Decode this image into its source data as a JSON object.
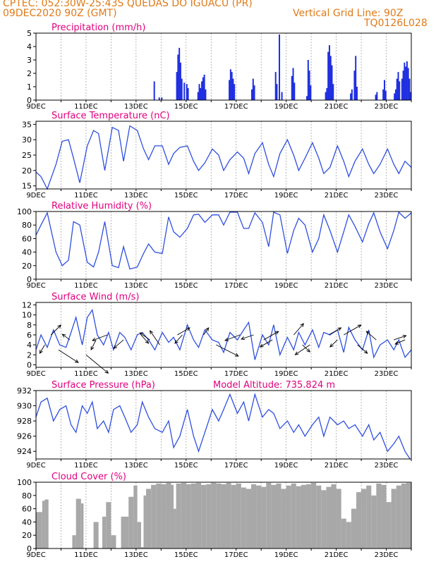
{
  "header": {
    "line1": "CPTEC:   052:30W-25:43S   QUEDAS DO IGUACU (PR)",
    "line2_left": "09DEC2020 90Z (GMT)",
    "line2_right": "Vertical Grid Line: 90Z",
    "line3_right": "TQ0126L028"
  },
  "colors": {
    "title": "#e0007e",
    "header": "#e07a18",
    "line": "#2f4fe0",
    "bar": "#1f2fe0",
    "cloud": "#a8a8a8"
  },
  "chart_data": [
    {
      "type": "bar",
      "title": "Precipitation  (mm/h)",
      "x_labels": [
        "9DEC",
        "11DEC",
        "13DEC",
        "15DEC",
        "17DEC",
        "19DEC",
        "21DEC",
        "23DEC"
      ],
      "ylim": [
        0,
        5
      ],
      "yticks": [
        0,
        1,
        2,
        3,
        4,
        5
      ],
      "events": [
        {
          "day": 13.7,
          "v": 1.4
        },
        {
          "day": 13.9,
          "v": 0.2
        },
        {
          "day": 14.0,
          "v": 0.2
        },
        {
          "day": 14.6,
          "v": 2.1
        },
        {
          "day": 14.65,
          "v": 3.4
        },
        {
          "day": 14.7,
          "v": 3.9
        },
        {
          "day": 14.75,
          "v": 2.8
        },
        {
          "day": 14.8,
          "v": 1.6
        },
        {
          "day": 14.9,
          "v": 1.3
        },
        {
          "day": 15.0,
          "v": 1.2
        },
        {
          "day": 15.05,
          "v": 0.9
        },
        {
          "day": 15.45,
          "v": 0.6
        },
        {
          "day": 15.5,
          "v": 1.2
        },
        {
          "day": 15.55,
          "v": 0.9
        },
        {
          "day": 15.6,
          "v": 1.4
        },
        {
          "day": 15.65,
          "v": 1.7
        },
        {
          "day": 15.7,
          "v": 1.9
        },
        {
          "day": 15.75,
          "v": 0.8
        },
        {
          "day": 16.7,
          "v": 1.5
        },
        {
          "day": 16.75,
          "v": 2.3
        },
        {
          "day": 16.8,
          "v": 2.1
        },
        {
          "day": 16.85,
          "v": 1.6
        },
        {
          "day": 16.9,
          "v": 1.2
        },
        {
          "day": 17.6,
          "v": 0.8
        },
        {
          "day": 17.65,
          "v": 1.6
        },
        {
          "day": 17.7,
          "v": 1.1
        },
        {
          "day": 18.55,
          "v": 2.1
        },
        {
          "day": 18.6,
          "v": 1.2
        },
        {
          "day": 18.7,
          "v": 4.9
        },
        {
          "day": 18.8,
          "v": 0.6
        },
        {
          "day": 19.2,
          "v": 1.8
        },
        {
          "day": 19.25,
          "v": 2.4
        },
        {
          "day": 19.3,
          "v": 1.3
        },
        {
          "day": 19.8,
          "v": 0.3
        },
        {
          "day": 19.85,
          "v": 3.0
        },
        {
          "day": 19.9,
          "v": 2.2
        },
        {
          "day": 19.95,
          "v": 1.1
        },
        {
          "day": 20.55,
          "v": 0.6
        },
        {
          "day": 20.6,
          "v": 0.9
        },
        {
          "day": 20.65,
          "v": 3.6
        },
        {
          "day": 20.7,
          "v": 4.1
        },
        {
          "day": 20.75,
          "v": 3.3
        },
        {
          "day": 20.8,
          "v": 2.6
        },
        {
          "day": 20.85,
          "v": 1.2
        },
        {
          "day": 21.55,
          "v": 0.5
        },
        {
          "day": 21.6,
          "v": 0.8
        },
        {
          "day": 21.7,
          "v": 2.2
        },
        {
          "day": 21.75,
          "v": 3.3
        },
        {
          "day": 21.8,
          "v": 1.0
        },
        {
          "day": 22.55,
          "v": 0.4
        },
        {
          "day": 22.6,
          "v": 0.6
        },
        {
          "day": 22.85,
          "v": 0.8
        },
        {
          "day": 22.9,
          "v": 1.5
        },
        {
          "day": 22.95,
          "v": 0.7
        },
        {
          "day": 23.3,
          "v": 0.5
        },
        {
          "day": 23.35,
          "v": 0.8
        },
        {
          "day": 23.4,
          "v": 1.6
        },
        {
          "day": 23.45,
          "v": 2.1
        },
        {
          "day": 23.5,
          "v": 1.4
        },
        {
          "day": 23.6,
          "v": 1.6
        },
        {
          "day": 23.65,
          "v": 2.2
        },
        {
          "day": 23.7,
          "v": 2.8
        },
        {
          "day": 23.75,
          "v": 2.5
        },
        {
          "day": 23.8,
          "v": 2.9
        },
        {
          "day": 23.85,
          "v": 2.4
        },
        {
          "day": 23.9,
          "v": 1.6
        },
        {
          "day": 23.95,
          "v": 0.6
        }
      ]
    },
    {
      "type": "line",
      "title": "Surface Temperature (nC)",
      "x_labels": [
        "9DEC",
        "11DEC",
        "13DEC",
        "15DEC",
        "17DEC",
        "19DEC",
        "21DEC",
        "23DEC"
      ],
      "ylim": [
        14,
        36
      ],
      "yticks": [
        15,
        20,
        25,
        30,
        35
      ],
      "x": [
        9.0,
        9.2,
        9.45,
        9.8,
        10.05,
        10.3,
        10.5,
        10.75,
        11.05,
        11.3,
        11.5,
        11.75,
        12.05,
        12.3,
        12.5,
        12.75,
        13.05,
        13.3,
        13.5,
        13.75,
        14.05,
        14.3,
        14.5,
        14.75,
        15.05,
        15.3,
        15.5,
        15.75,
        16.05,
        16.3,
        16.5,
        16.75,
        17.05,
        17.3,
        17.5,
        17.75,
        18.05,
        18.3,
        18.5,
        18.75,
        19.05,
        19.3,
        19.5,
        19.75,
        20.05,
        20.3,
        20.5,
        20.75,
        21.05,
        21.3,
        21.5,
        21.75,
        22.05,
        22.3,
        22.5,
        22.75,
        23.05,
        23.3,
        23.5,
        23.75,
        24.0
      ],
      "y": [
        19.5,
        18,
        14,
        22,
        29.5,
        30,
        24,
        16,
        28,
        33,
        32,
        20,
        34,
        33,
        23,
        34.5,
        33,
        27,
        23.5,
        28,
        28,
        22,
        25.5,
        27.5,
        28,
        23,
        20,
        22.5,
        27,
        25,
        20,
        23.5,
        26,
        24,
        19,
        25.5,
        29,
        22,
        18,
        25.5,
        30,
        25,
        20,
        24,
        29,
        24,
        19,
        21,
        28,
        23,
        18,
        23,
        27,
        22,
        19,
        22,
        27,
        22,
        19,
        23,
        21
      ]
    },
    {
      "type": "line",
      "title": "Relative Humidity (%)",
      "x_labels": [
        "9DEC",
        "11DEC",
        "13DEC",
        "15DEC",
        "17DEC",
        "19DEC",
        "21DEC",
        "23DEC"
      ],
      "ylim": [
        0,
        100
      ],
      "yticks": [
        0,
        20,
        40,
        60,
        80,
        100
      ],
      "x": [
        9.0,
        9.2,
        9.45,
        9.8,
        10.05,
        10.3,
        10.5,
        10.75,
        11.05,
        11.3,
        11.5,
        11.75,
        12.05,
        12.3,
        12.5,
        12.75,
        13.05,
        13.3,
        13.5,
        13.75,
        14.05,
        14.3,
        14.5,
        14.75,
        15.05,
        15.3,
        15.5,
        15.75,
        16.05,
        16.3,
        16.5,
        16.75,
        17.05,
        17.3,
        17.5,
        17.75,
        18.05,
        18.3,
        18.5,
        18.75,
        19.05,
        19.3,
        19.5,
        19.75,
        20.05,
        20.3,
        20.5,
        20.75,
        21.05,
        21.3,
        21.5,
        21.75,
        22.05,
        22.3,
        22.5,
        22.75,
        23.05,
        23.3,
        23.5,
        23.75,
        24.0
      ],
      "y": [
        65,
        80,
        98,
        40,
        20,
        28,
        85,
        80,
        25,
        18,
        40,
        85,
        20,
        17,
        48,
        15,
        18,
        38,
        52,
        40,
        38,
        92,
        70,
        62,
        75,
        95,
        96,
        84,
        95,
        95,
        80,
        99,
        99,
        75,
        75,
        98,
        84,
        48,
        99,
        95,
        38,
        72,
        90,
        80,
        40,
        60,
        95,
        72,
        40,
        70,
        95,
        78,
        55,
        82,
        98,
        70,
        45,
        72,
        99,
        90,
        98
      ]
    },
    {
      "type": "line",
      "title": "Surface Wind  (m/s)",
      "x_labels": [
        "9DEC",
        "11DEC",
        "13DEC",
        "15DEC",
        "17DEC",
        "19DEC",
        "21DEC",
        "23DEC"
      ],
      "ylim": [
        -0.5,
        12.5
      ],
      "yticks": [
        0,
        2,
        4,
        6,
        8,
        10,
        12
      ],
      "x": [
        9.0,
        9.2,
        9.45,
        9.7,
        9.95,
        10.2,
        10.4,
        10.6,
        10.85,
        11.05,
        11.25,
        11.45,
        11.7,
        11.9,
        12.1,
        12.35,
        12.55,
        12.8,
        13.05,
        13.25,
        13.5,
        13.75,
        14.05,
        14.3,
        14.5,
        14.75,
        15.05,
        15.3,
        15.5,
        15.75,
        16.05,
        16.3,
        16.5,
        16.75,
        17.05,
        17.3,
        17.5,
        17.75,
        18.05,
        18.3,
        18.5,
        18.75,
        19.05,
        19.3,
        19.5,
        19.75,
        20.05,
        20.3,
        20.5,
        20.75,
        21.05,
        21.3,
        21.5,
        21.75,
        22.05,
        22.3,
        22.5,
        22.75,
        23.05,
        23.3,
        23.5,
        23.75,
        24.0
      ],
      "y": [
        3,
        6,
        3.5,
        7,
        4,
        3.5,
        6.5,
        9.5,
        4,
        9.5,
        11,
        6,
        4,
        6.5,
        3,
        6.5,
        5.5,
        3,
        6,
        6.5,
        5,
        3,
        6.5,
        4.5,
        5.5,
        3,
        8,
        5,
        3.5,
        7,
        5,
        4.5,
        2.5,
        6.5,
        5,
        7,
        8.5,
        1,
        6,
        4,
        8,
        2,
        5.5,
        3,
        6.5,
        4,
        7,
        3.5,
        6.5,
        6,
        7,
        2.5,
        7.5,
        5,
        3,
        7,
        1.5,
        4,
        5,
        3,
        5,
        1.5,
        3
      ]
    },
    {
      "type": "line",
      "title": "Surface Pressure (hPa)",
      "annotation": "Model Altitude: 735.824  m",
      "x_labels": [
        "9DEC",
        "11DEC",
        "13DEC",
        "15DEC",
        "17DEC",
        "19DEC",
        "21DEC",
        "23DEC"
      ],
      "ylim": [
        923,
        932
      ],
      "yticks": [
        924,
        926,
        928,
        930,
        932
      ],
      "x": [
        9.0,
        9.2,
        9.45,
        9.7,
        9.95,
        10.2,
        10.4,
        10.6,
        10.85,
        11.05,
        11.25,
        11.45,
        11.7,
        11.9,
        12.1,
        12.35,
        12.55,
        12.8,
        13.05,
        13.25,
        13.5,
        13.75,
        14.05,
        14.3,
        14.5,
        14.75,
        15.05,
        15.3,
        15.5,
        15.75,
        16.05,
        16.3,
        16.5,
        16.75,
        17.05,
        17.3,
        17.5,
        17.75,
        18.05,
        18.3,
        18.5,
        18.75,
        19.05,
        19.3,
        19.5,
        19.75,
        20.05,
        20.3,
        20.5,
        20.75,
        21.05,
        21.3,
        21.5,
        21.75,
        22.05,
        22.3,
        22.5,
        22.75,
        23.05,
        23.3,
        23.5,
        23.75,
        23.95
      ],
      "y": [
        928.5,
        930.5,
        931,
        928,
        929.5,
        930,
        927.5,
        926.5,
        930,
        929,
        930.5,
        927,
        928,
        926.5,
        929.5,
        930,
        928.5,
        926.5,
        927.5,
        930.5,
        928.5,
        927,
        926.5,
        928,
        924.5,
        926,
        929.5,
        926,
        924,
        926.5,
        929.5,
        928,
        929.5,
        931.5,
        929,
        930.5,
        928,
        931.5,
        928.5,
        929.5,
        929,
        927,
        928,
        926.5,
        927.5,
        926,
        927.5,
        928.5,
        926,
        928.5,
        927.5,
        928,
        927,
        927.5,
        926,
        927.5,
        925.5,
        926.5,
        924,
        925,
        926,
        924,
        923
      ]
    },
    {
      "type": "bar",
      "title": "Cloud Cover (%)",
      "x_labels": [
        "9DEC",
        "11DEC",
        "13DEC",
        "15DEC",
        "17DEC",
        "19DEC",
        "21DEC",
        "23DEC"
      ],
      "ylim": [
        0,
        100
      ],
      "yticks": [
        0,
        20,
        40,
        60,
        80,
        100
      ],
      "x": [
        9.0,
        9.25,
        9.35,
        9.5,
        9.6,
        9.8,
        10.0,
        10.2,
        10.45,
        10.6,
        10.8,
        10.9,
        11.1,
        11.3,
        11.5,
        11.65,
        11.8,
        12.0,
        12.2,
        12.4,
        12.7,
        12.9,
        13.05,
        13.2,
        13.3,
        13.4,
        13.6,
        13.8,
        14.0,
        14.2,
        14.4,
        14.5,
        14.6,
        14.8,
        15.0,
        15.2,
        15.4,
        15.6,
        15.8,
        16.0,
        16.2,
        16.4,
        16.6,
        16.8,
        17.0,
        17.2,
        17.4,
        17.6,
        17.8,
        18.0,
        18.2,
        18.4,
        18.6,
        18.8,
        19.0,
        19.2,
        19.4,
        19.6,
        19.8,
        20.0,
        20.2,
        20.4,
        20.6,
        20.8,
        21.0,
        21.2,
        21.4,
        21.6,
        21.8,
        22.0,
        22.2,
        22.4,
        22.6,
        22.8,
        23.0,
        23.2,
        23.4,
        23.6,
        23.8
      ],
      "values": [
        55,
        72,
        74,
        0,
        0,
        0,
        0,
        0,
        20,
        75,
        68,
        0,
        0,
        40,
        0,
        48,
        70,
        20,
        0,
        48,
        78,
        95,
        40,
        2,
        80,
        90,
        96,
        98,
        97,
        99,
        96,
        60,
        98,
        99,
        97,
        98,
        99,
        96,
        97,
        99,
        98,
        97,
        99,
        96,
        98,
        92,
        90,
        97,
        95,
        93,
        99,
        96,
        98,
        90,
        95,
        98,
        94,
        96,
        97,
        99,
        95,
        88,
        93,
        97,
        90,
        45,
        40,
        60,
        85,
        90,
        95,
        80,
        98,
        96,
        70,
        90,
        95,
        98,
        99
      ]
    }
  ]
}
